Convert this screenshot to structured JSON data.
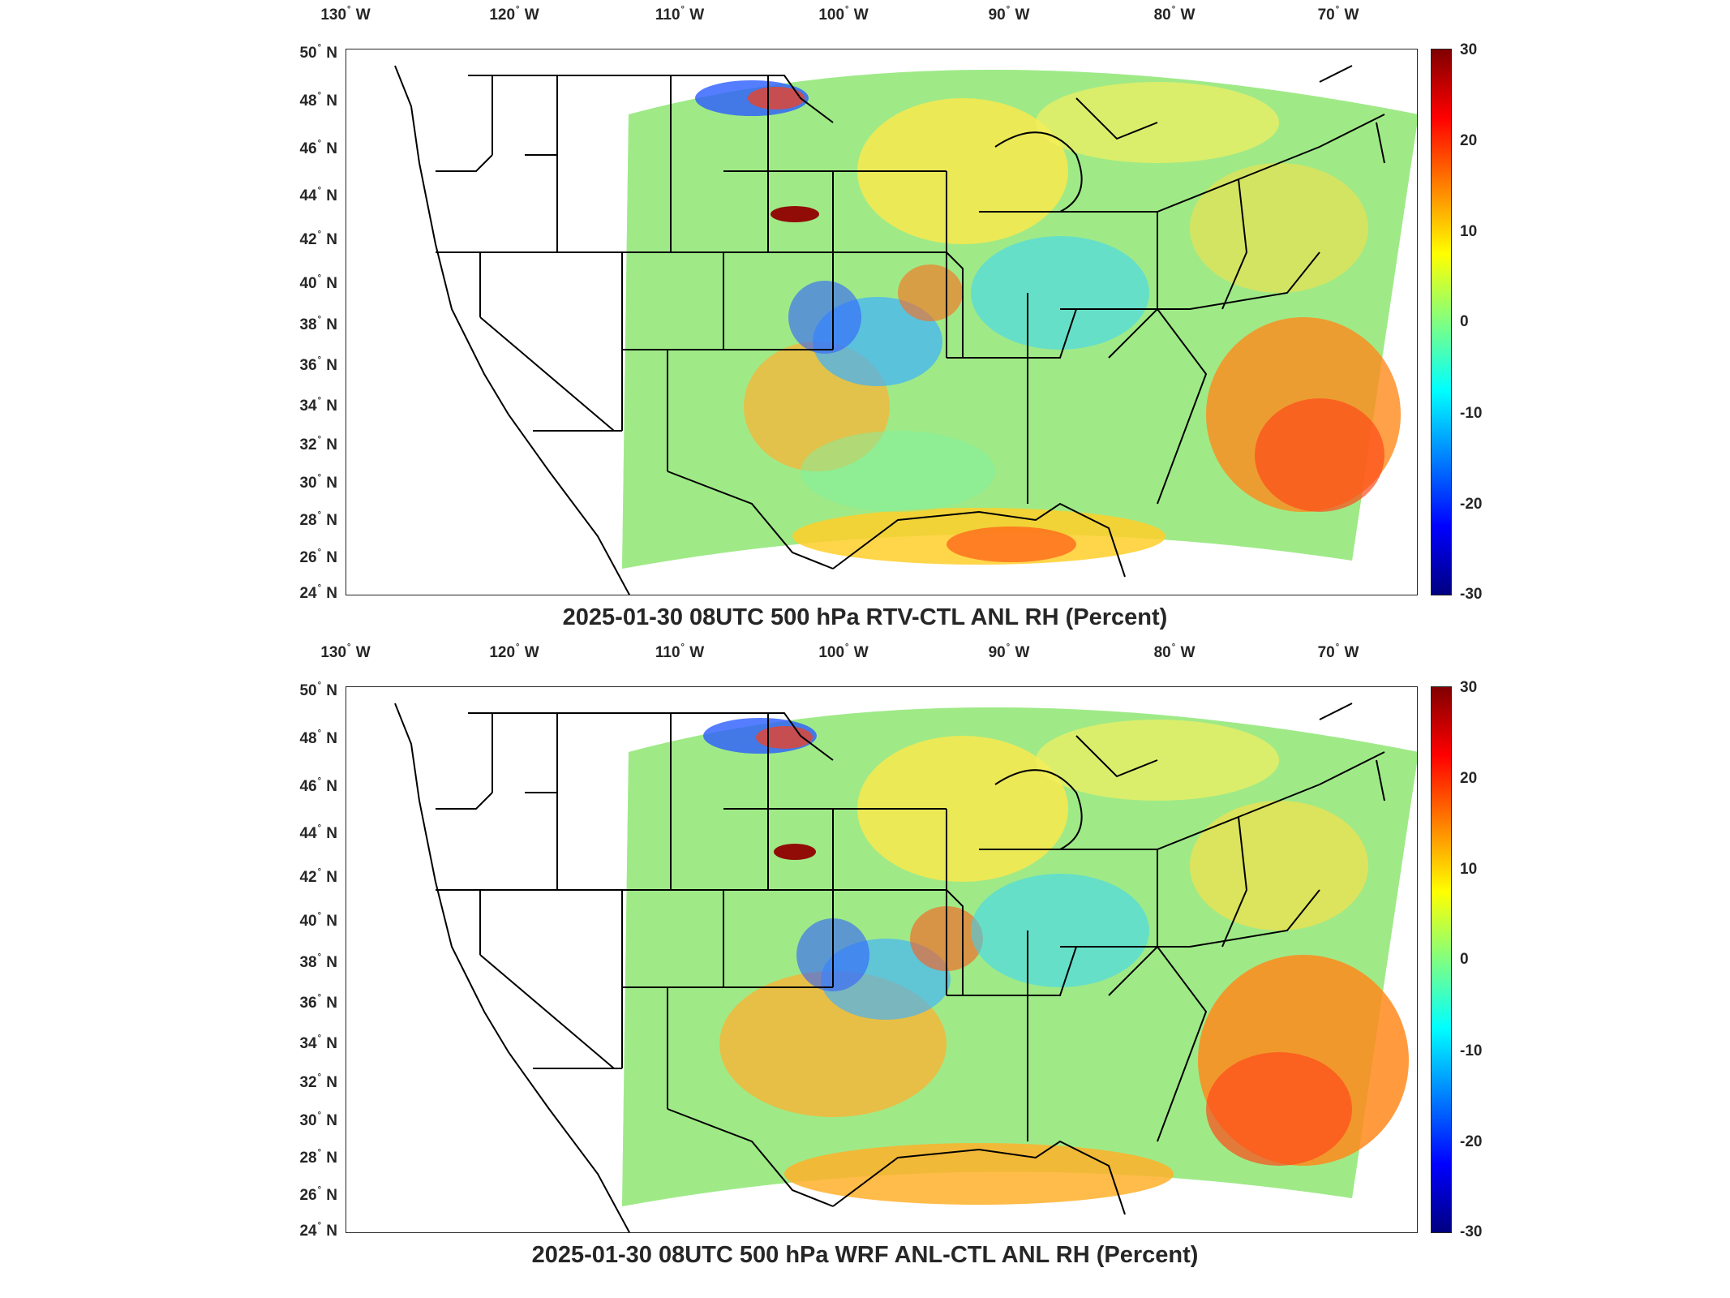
{
  "figure": {
    "panels": [
      {
        "title": "2025-01-30 08UTC 500 hPa RTV-CTL ANL RH (Percent)",
        "lon_labels": [
          "130",
          "120",
          "110",
          "100",
          "90",
          "80",
          "70"
        ],
        "lat_labels": [
          "50",
          "48",
          "46",
          "44",
          "42",
          "40",
          "38",
          "36",
          "34",
          "32",
          "30",
          "28",
          "26",
          "24"
        ],
        "lon_suffix": "W",
        "lat_suffix": "N",
        "colorbar_ticks": [
          "30",
          "20",
          "10",
          "0",
          "-10",
          "-20",
          "-30"
        ]
      },
      {
        "title": "2025-01-30 08UTC 500 hPa WRF ANL-CTL ANL RH (Percent)",
        "lon_labels": [
          "130",
          "120",
          "110",
          "100",
          "90",
          "80",
          "70"
        ],
        "lat_labels": [
          "50",
          "48",
          "46",
          "44",
          "42",
          "40",
          "38",
          "36",
          "34",
          "32",
          "30",
          "28",
          "26",
          "24"
        ],
        "lon_suffix": "W",
        "lat_suffix": "N",
        "colorbar_ticks": [
          "30",
          "20",
          "10",
          "0",
          "-10",
          "-20",
          "-30"
        ]
      }
    ]
  },
  "colors": {
    "colormap": [
      "#000080",
      "#0000ff",
      "#0080ff",
      "#00ffff",
      "#80ff80",
      "#ffff00",
      "#ff8000",
      "#ff0000",
      "#800000"
    ],
    "borders": "#000000",
    "axis": "#262626"
  },
  "colorbar": {
    "min": -30,
    "max": 30
  }
}
